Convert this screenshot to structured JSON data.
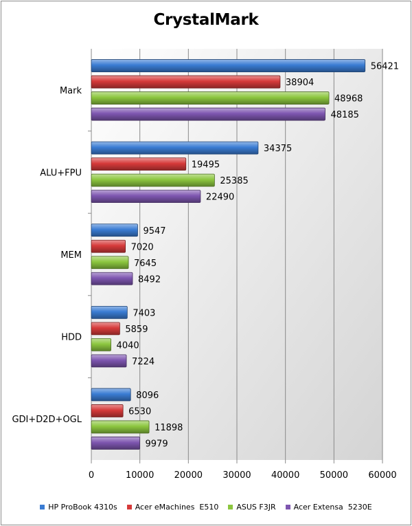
{
  "chart_data": {
    "type": "bar",
    "orientation": "horizontal",
    "title": "CrystalMark",
    "categories": [
      "Mark",
      "ALU+FPU",
      "MEM",
      "HDD",
      "GDI+D2D+OGL"
    ],
    "series": [
      {
        "name": "HP ProBook 4310s",
        "color": "#3a7cd3",
        "values": [
          56421,
          34375,
          9547,
          7403,
          8096
        ]
      },
      {
        "name": "Acer eMachines  E510",
        "color": "#d63a3a",
        "values": [
          38904,
          19495,
          7020,
          5859,
          6530
        ]
      },
      {
        "name": "ASUS F3JR",
        "color": "#8cc63f",
        "values": [
          48968,
          25385,
          7645,
          4040,
          11898
        ]
      },
      {
        "name": "Acer Extensa  5230E",
        "color": "#7e56b0",
        "values": [
          48185,
          22490,
          8492,
          7224,
          9979
        ]
      }
    ],
    "xlim": [
      0,
      60000
    ],
    "xticks": [
      "0",
      "10000",
      "20000",
      "30000",
      "40000",
      "50000",
      "60000"
    ],
    "data_labels": true,
    "grid": "vertical",
    "legend_position": "bottom"
  }
}
